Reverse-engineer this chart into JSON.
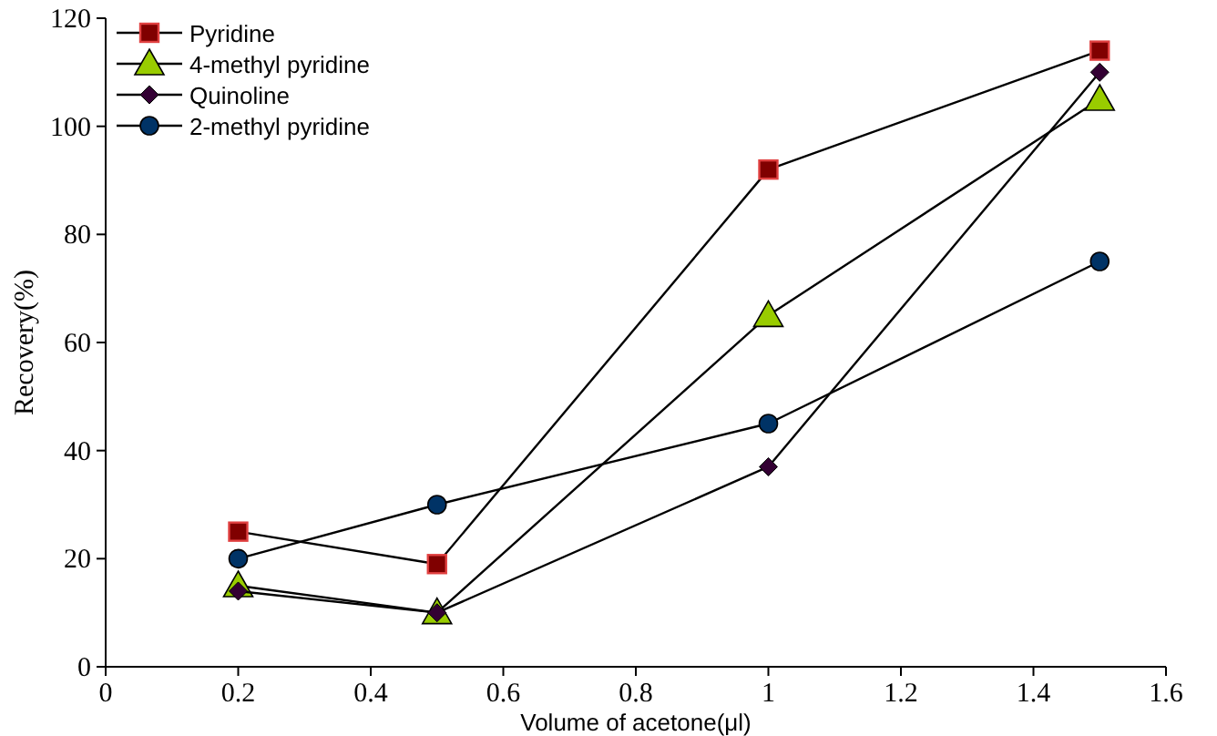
{
  "chart_data": {
    "type": "line",
    "xlabel": "Volume of acetone(μl)",
    "ylabel": "Recovery(%)",
    "xlim": [
      0,
      1.6
    ],
    "xticks": [
      0,
      0.2,
      0.4,
      0.6,
      0.8,
      1,
      1.2,
      1.4,
      1.6
    ],
    "ylim": [
      0,
      120
    ],
    "yticks": [
      0,
      20,
      40,
      60,
      80,
      100,
      120
    ],
    "x": [
      0.2,
      0.5,
      1,
      1.5
    ],
    "legend": "top left",
    "grid": false,
    "line_style": "solid",
    "series": [
      {
        "name": "Pyridine",
        "color": "#800000",
        "marker": "square",
        "values": [
          25,
          19,
          92,
          114
        ]
      },
      {
        "name": "4-methyl pyridine",
        "color": "#99cc00",
        "marker": "triangle",
        "values": [
          15,
          10,
          65,
          105
        ]
      },
      {
        "name": "Quinoline",
        "color": "#330033",
        "marker": "diamond",
        "values": [
          14,
          10,
          37,
          110
        ]
      },
      {
        "name": "2-methyl pyridine",
        "color": "#003366",
        "marker": "circle",
        "values": [
          20,
          30,
          45,
          75
        ]
      }
    ]
  }
}
